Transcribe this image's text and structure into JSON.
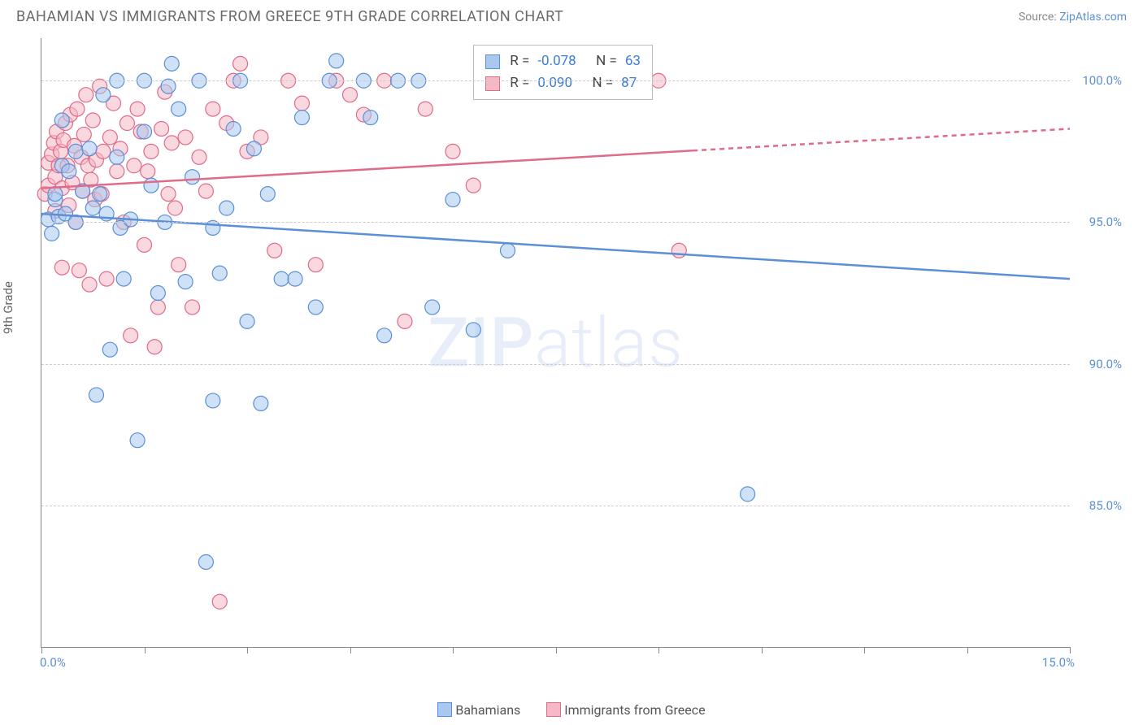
{
  "title": "BAHAMIAN VS IMMIGRANTS FROM GREECE 9TH GRADE CORRELATION CHART",
  "source_label": "Source:",
  "source_name": "ZipAtlas.com",
  "watermark_a": "ZIP",
  "watermark_b": "atlas",
  "chart": {
    "type": "scatter",
    "background_color": "#ffffff",
    "grid_color": "#cccccc",
    "axis_color": "#888888",
    "text_color": "#6a6a6a",
    "tick_color": "#5b8fd6",
    "ylabel": "9th Grade",
    "xlim": [
      0,
      15
    ],
    "ylim": [
      80,
      101.5
    ],
    "yticks": [
      85,
      90,
      95,
      100
    ],
    "ytick_labels": [
      "85.0%",
      "90.0%",
      "95.0%",
      "100.0%"
    ],
    "xtick_positions": [
      0,
      1.5,
      3,
      4.5,
      6,
      7.5,
      9,
      10.5,
      12,
      13.5,
      15
    ],
    "xlabel_min": "0.0%",
    "xlabel_max": "15.0%",
    "series": [
      {
        "name": "Bahamians",
        "color_fill": "#a8c8f0",
        "color_stroke": "#5b8fd6",
        "fill_opacity": 0.55,
        "marker_radius": 9,
        "R": "-0.078",
        "N": "63",
        "trend": {
          "x1": 0,
          "y1": 95.3,
          "x2": 15,
          "y2": 93.0,
          "dash_from_x": null
        },
        "points": [
          [
            0.1,
            95.1
          ],
          [
            0.15,
            94.6
          ],
          [
            0.2,
            95.8
          ],
          [
            0.2,
            96.0
          ],
          [
            0.25,
            95.2
          ],
          [
            0.3,
            97.0
          ],
          [
            0.3,
            98.6
          ],
          [
            0.35,
            95.3
          ],
          [
            0.4,
            96.8
          ],
          [
            0.5,
            97.5
          ],
          [
            0.5,
            95.0
          ],
          [
            0.6,
            96.1
          ],
          [
            0.7,
            97.6
          ],
          [
            0.75,
            95.5
          ],
          [
            0.8,
            88.9
          ],
          [
            0.85,
            96.0
          ],
          [
            0.9,
            99.5
          ],
          [
            0.95,
            95.3
          ],
          [
            1.0,
            90.5
          ],
          [
            1.1,
            100.0
          ],
          [
            1.1,
            97.3
          ],
          [
            1.15,
            94.8
          ],
          [
            1.2,
            93.0
          ],
          [
            1.3,
            95.1
          ],
          [
            1.4,
            87.3
          ],
          [
            1.5,
            100.0
          ],
          [
            1.5,
            98.2
          ],
          [
            1.6,
            96.3
          ],
          [
            1.7,
            92.5
          ],
          [
            1.8,
            95.0
          ],
          [
            1.85,
            99.8
          ],
          [
            1.9,
            100.6
          ],
          [
            2.0,
            99.0
          ],
          [
            2.1,
            92.9
          ],
          [
            2.2,
            96.6
          ],
          [
            2.3,
            100.0
          ],
          [
            2.4,
            83.0
          ],
          [
            2.5,
            88.7
          ],
          [
            2.5,
            94.8
          ],
          [
            2.6,
            93.2
          ],
          [
            2.7,
            95.5
          ],
          [
            2.8,
            98.3
          ],
          [
            2.9,
            100.0
          ],
          [
            3.0,
            91.5
          ],
          [
            3.1,
            97.6
          ],
          [
            3.2,
            88.6
          ],
          [
            3.3,
            96.0
          ],
          [
            3.5,
            93.0
          ],
          [
            3.7,
            93.0
          ],
          [
            3.8,
            98.7
          ],
          [
            4.0,
            92.0
          ],
          [
            4.2,
            100.0
          ],
          [
            4.3,
            100.7
          ],
          [
            4.7,
            100.0
          ],
          [
            4.8,
            98.7
          ],
          [
            5.0,
            91.0
          ],
          [
            5.2,
            100.0
          ],
          [
            5.5,
            100.0
          ],
          [
            5.7,
            92.0
          ],
          [
            6.0,
            95.8
          ],
          [
            6.3,
            91.2
          ],
          [
            6.8,
            94.0
          ],
          [
            10.3,
            85.4
          ]
        ]
      },
      {
        "name": "Immigrants from Greece",
        "color_fill": "#f5b8c5",
        "color_stroke": "#e06b88",
        "fill_opacity": 0.55,
        "marker_radius": 9,
        "R": "0.090",
        "N": "87",
        "trend": {
          "x1": 0,
          "y1": 96.2,
          "x2": 15,
          "y2": 98.3,
          "dash_from_x": 9.5
        },
        "points": [
          [
            0.05,
            96.0
          ],
          [
            0.1,
            96.3
          ],
          [
            0.1,
            97.1
          ],
          [
            0.15,
            97.4
          ],
          [
            0.18,
            97.8
          ],
          [
            0.2,
            95.4
          ],
          [
            0.2,
            96.6
          ],
          [
            0.22,
            98.2
          ],
          [
            0.25,
            97.0
          ],
          [
            0.28,
            97.5
          ],
          [
            0.3,
            96.2
          ],
          [
            0.3,
            93.4
          ],
          [
            0.32,
            97.9
          ],
          [
            0.35,
            98.5
          ],
          [
            0.38,
            97.0
          ],
          [
            0.4,
            95.6
          ],
          [
            0.42,
            98.8
          ],
          [
            0.45,
            96.4
          ],
          [
            0.48,
            97.7
          ],
          [
            0.5,
            95.0
          ],
          [
            0.52,
            99.0
          ],
          [
            0.55,
            93.3
          ],
          [
            0.58,
            97.3
          ],
          [
            0.6,
            96.1
          ],
          [
            0.62,
            98.1
          ],
          [
            0.65,
            99.5
          ],
          [
            0.68,
            97.0
          ],
          [
            0.7,
            92.8
          ],
          [
            0.72,
            96.5
          ],
          [
            0.75,
            98.6
          ],
          [
            0.78,
            95.8
          ],
          [
            0.8,
            97.2
          ],
          [
            0.85,
            99.8
          ],
          [
            0.88,
            96.0
          ],
          [
            0.9,
            97.5
          ],
          [
            0.95,
            93.0
          ],
          [
            1.0,
            98.0
          ],
          [
            1.05,
            99.2
          ],
          [
            1.1,
            96.8
          ],
          [
            1.15,
            97.6
          ],
          [
            1.2,
            95.0
          ],
          [
            1.25,
            98.5
          ],
          [
            1.3,
            91.0
          ],
          [
            1.35,
            97.0
          ],
          [
            1.4,
            99.0
          ],
          [
            1.45,
            98.2
          ],
          [
            1.5,
            94.2
          ],
          [
            1.55,
            96.8
          ],
          [
            1.6,
            97.5
          ],
          [
            1.65,
            90.6
          ],
          [
            1.7,
            92.0
          ],
          [
            1.75,
            98.3
          ],
          [
            1.8,
            99.6
          ],
          [
            1.85,
            96.0
          ],
          [
            1.9,
            97.8
          ],
          [
            1.95,
            95.5
          ],
          [
            2.0,
            93.5
          ],
          [
            2.1,
            98.0
          ],
          [
            2.2,
            92.0
          ],
          [
            2.3,
            97.3
          ],
          [
            2.4,
            96.1
          ],
          [
            2.5,
            99.0
          ],
          [
            2.6,
            81.6
          ],
          [
            2.7,
            98.5
          ],
          [
            2.8,
            100.0
          ],
          [
            2.9,
            100.6
          ],
          [
            3.0,
            97.5
          ],
          [
            3.2,
            98.0
          ],
          [
            3.4,
            94.0
          ],
          [
            3.6,
            100.0
          ],
          [
            3.8,
            99.2
          ],
          [
            4.0,
            93.5
          ],
          [
            4.3,
            100.0
          ],
          [
            4.5,
            99.5
          ],
          [
            4.7,
            98.8
          ],
          [
            5.0,
            100.0
          ],
          [
            5.3,
            91.5
          ],
          [
            5.6,
            99.0
          ],
          [
            6.0,
            97.5
          ],
          [
            6.3,
            96.3
          ],
          [
            6.7,
            100.0
          ],
          [
            7.0,
            100.0
          ],
          [
            7.5,
            100.0
          ],
          [
            8.0,
            100.6
          ],
          [
            8.5,
            100.0
          ],
          [
            9.0,
            100.0
          ],
          [
            9.3,
            94.0
          ]
        ]
      }
    ],
    "legend": {
      "stat_label_R": "R =",
      "stat_label_N": "N ="
    }
  }
}
